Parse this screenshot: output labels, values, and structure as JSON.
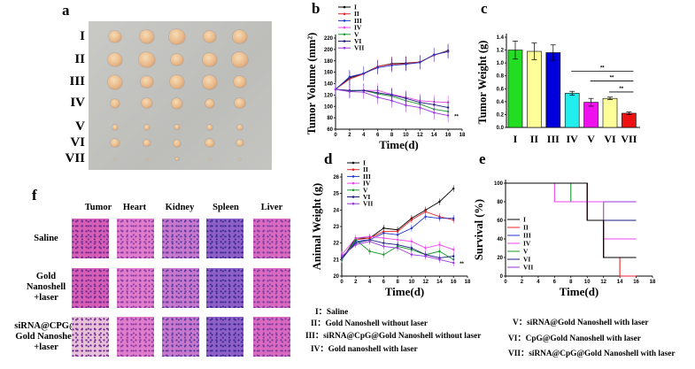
{
  "panel_labels": {
    "a": "a",
    "b": "b",
    "c": "c",
    "d": "d",
    "e": "e",
    "f": "f"
  },
  "panel_a": {
    "row_labels": [
      "I",
      "II",
      "III",
      "IV",
      "V",
      "VI",
      "VII"
    ]
  },
  "panel_f": {
    "columns": [
      "Tumor",
      "Heart",
      "Kidney",
      "Spleen",
      "Liver"
    ],
    "rows": [
      [
        "Saline"
      ],
      [
        "Gold",
        "Nanoshell",
        "+laser"
      ],
      [
        "siRNA@CPG@",
        "Gold Nanoshell",
        "+laser"
      ]
    ]
  },
  "group_legend": [
    "I：Saline",
    "II：Gold Nanoshell without laser",
    "III：siRNA@CpG@Gold Nanoshell without laser",
    "IV：Gold nanoshell with laser",
    "V：siRNA@Gold Nanoshell with laser",
    "VI：CpG@Gold Nanoshell with laser",
    "VII：siRNA@CpG@Gold Nanoshell with laser"
  ],
  "colors": {
    "I": "#000000",
    "II": "#e8262b",
    "III": "#2233cc",
    "IV": "#ee44ee",
    "V": "#1a9a2a",
    "VI": "#1a1a80",
    "VII": "#9933dd"
  },
  "chart_data": [
    {
      "panel": "b",
      "type": "line",
      "xlabel": "Time(d)",
      "ylabel": "Tumor Volume (mm²)",
      "xlim": [
        0,
        18
      ],
      "ylim": [
        60,
        220
      ],
      "xticks": [
        "0",
        "2",
        "4",
        "6",
        "8",
        "10",
        "12",
        "14",
        "16",
        "18"
      ],
      "yticks": [
        "60",
        "80",
        "100",
        "120",
        "140",
        "160",
        "180",
        "200",
        "220"
      ],
      "x": [
        0,
        2,
        4,
        6,
        8,
        10,
        12,
        14,
        16
      ],
      "error_bar": 12,
      "annotation": "**",
      "series": [
        {
          "name": "I",
          "values": [
            130,
            150,
            158,
            170,
            175,
            176,
            178,
            190,
            198
          ]
        },
        {
          "name": "II",
          "values": [
            130,
            148,
            157,
            170,
            174,
            175,
            178,
            190,
            197
          ]
        },
        {
          "name": "III",
          "values": [
            130,
            152,
            158,
            168,
            172,
            174,
            177,
            191,
            196
          ]
        },
        {
          "name": "IV",
          "values": [
            130,
            127,
            128,
            128,
            121,
            116,
            110,
            108,
            107
          ]
        },
        {
          "name": "V",
          "values": [
            130,
            127,
            128,
            122,
            118,
            110,
            104,
            95,
            91
          ]
        },
        {
          "name": "VI",
          "values": [
            130,
            128,
            128,
            124,
            120,
            114,
            107,
            103,
            98
          ]
        },
        {
          "name": "VII",
          "values": [
            130,
            126,
            125,
            116,
            110,
            102,
            98,
            89,
            84
          ]
        }
      ]
    },
    {
      "panel": "c",
      "type": "bar",
      "xlabel": "",
      "ylabel": "Tumor Weight (g)",
      "ylim": [
        0,
        1.4
      ],
      "yticks": [
        "0.0",
        "0.2",
        "0.4",
        "0.6",
        "0.8",
        "1.0",
        "1.2",
        "1.4"
      ],
      "categories": [
        "I",
        "II",
        "III",
        "IV",
        "V",
        "VI",
        "VII"
      ],
      "values": [
        1.2,
        1.18,
        1.16,
        0.53,
        0.39,
        0.45,
        0.22
      ],
      "errors": [
        0.14,
        0.13,
        0.12,
        0.03,
        0.06,
        0.02,
        0.02
      ],
      "bar_colors": [
        "#22dd22",
        "#ffff99",
        "#0000dd",
        "#22eeee",
        "#ee11ee",
        "#ffff99",
        "#ee1111"
      ],
      "significance": [
        {
          "from": "IV",
          "to": "VII",
          "y": 0.87,
          "label": "**"
        },
        {
          "from": "V",
          "to": "VII",
          "y": 0.72,
          "label": "**"
        },
        {
          "from": "VI",
          "to": "VII",
          "y": 0.55,
          "label": "**"
        }
      ]
    },
    {
      "panel": "d",
      "type": "line",
      "xlabel": "Time(d)",
      "ylabel": "Animal Weight (g)",
      "xlim": [
        0,
        18
      ],
      "ylim": [
        20,
        26
      ],
      "xticks": [
        "0",
        "2",
        "4",
        "6",
        "8",
        "10",
        "12",
        "14",
        "16",
        "18"
      ],
      "yticks": [
        "20",
        "21",
        "22",
        "23",
        "24",
        "25",
        "26"
      ],
      "x": [
        0,
        2,
        4,
        6,
        8,
        10,
        12,
        14,
        16
      ],
      "error_bar": 0.2,
      "annotation": "**",
      "series": [
        {
          "name": "I",
          "values": [
            21,
            22.3,
            22.3,
            22.9,
            22.8,
            23.5,
            24,
            24.5,
            25.3
          ]
        },
        {
          "name": "II",
          "values": [
            21,
            22.2,
            22.3,
            22.7,
            22.7,
            23.4,
            23.9,
            23.6,
            23.4
          ]
        },
        {
          "name": "III",
          "values": [
            21,
            22.1,
            22.2,
            22.6,
            22.5,
            22.9,
            23.6,
            23.5,
            23.5
          ]
        },
        {
          "name": "IV",
          "values": [
            21.3,
            22.3,
            22.4,
            22.3,
            22.2,
            22.1,
            21.7,
            21.9,
            21.6
          ]
        },
        {
          "name": "V",
          "values": [
            21,
            22.2,
            21.5,
            21.3,
            21.8,
            21.6,
            21.3,
            21.5,
            21
          ]
        },
        {
          "name": "VI",
          "values": [
            21.1,
            22,
            22.2,
            22,
            21.9,
            21.7,
            21.3,
            21.1,
            21.2
          ]
        },
        {
          "name": "VII",
          "values": [
            21.2,
            21.9,
            22.1,
            21.8,
            21.7,
            21.3,
            21.2,
            21,
            20.8
          ]
        }
      ]
    },
    {
      "panel": "e",
      "type": "line",
      "subtype": "step",
      "xlabel": "Time(d)",
      "ylabel": "Survival (%)",
      "xlim": [
        0,
        18
      ],
      "ylim": [
        0,
        100
      ],
      "xticks": [
        "0",
        "2",
        "4",
        "6",
        "8",
        "10",
        "12",
        "14",
        "16",
        "18"
      ],
      "yticks": [
        "0",
        "20",
        "40",
        "60",
        "80",
        "100"
      ],
      "series": [
        {
          "name": "I",
          "steps": [
            [
              0,
              100
            ],
            [
              10,
              60
            ],
            [
              12,
              20
            ],
            [
              16,
              20
            ]
          ]
        },
        {
          "name": "II",
          "steps": [
            [
              0,
              100
            ],
            [
              10,
              60
            ],
            [
              12,
              20
            ],
            [
              14,
              0
            ],
            [
              16,
              0
            ]
          ]
        },
        {
          "name": "III",
          "steps": [
            [
              0,
              100
            ],
            [
              10,
              60
            ],
            [
              12,
              20
            ],
            [
              16,
              20
            ]
          ]
        },
        {
          "name": "IV",
          "steps": [
            [
              0,
              100
            ],
            [
              6,
              80
            ],
            [
              12,
              40
            ],
            [
              16,
              40
            ]
          ]
        },
        {
          "name": "V",
          "steps": [
            [
              0,
              100
            ],
            [
              8,
              80
            ],
            [
              12,
              20
            ],
            [
              16,
              20
            ]
          ]
        },
        {
          "name": "VI",
          "steps": [
            [
              0,
              100
            ],
            [
              10,
              60
            ],
            [
              16,
              60
            ]
          ]
        },
        {
          "name": "VII",
          "steps": [
            [
              0,
              100
            ],
            [
              10,
              80
            ],
            [
              16,
              80
            ]
          ]
        }
      ]
    }
  ]
}
